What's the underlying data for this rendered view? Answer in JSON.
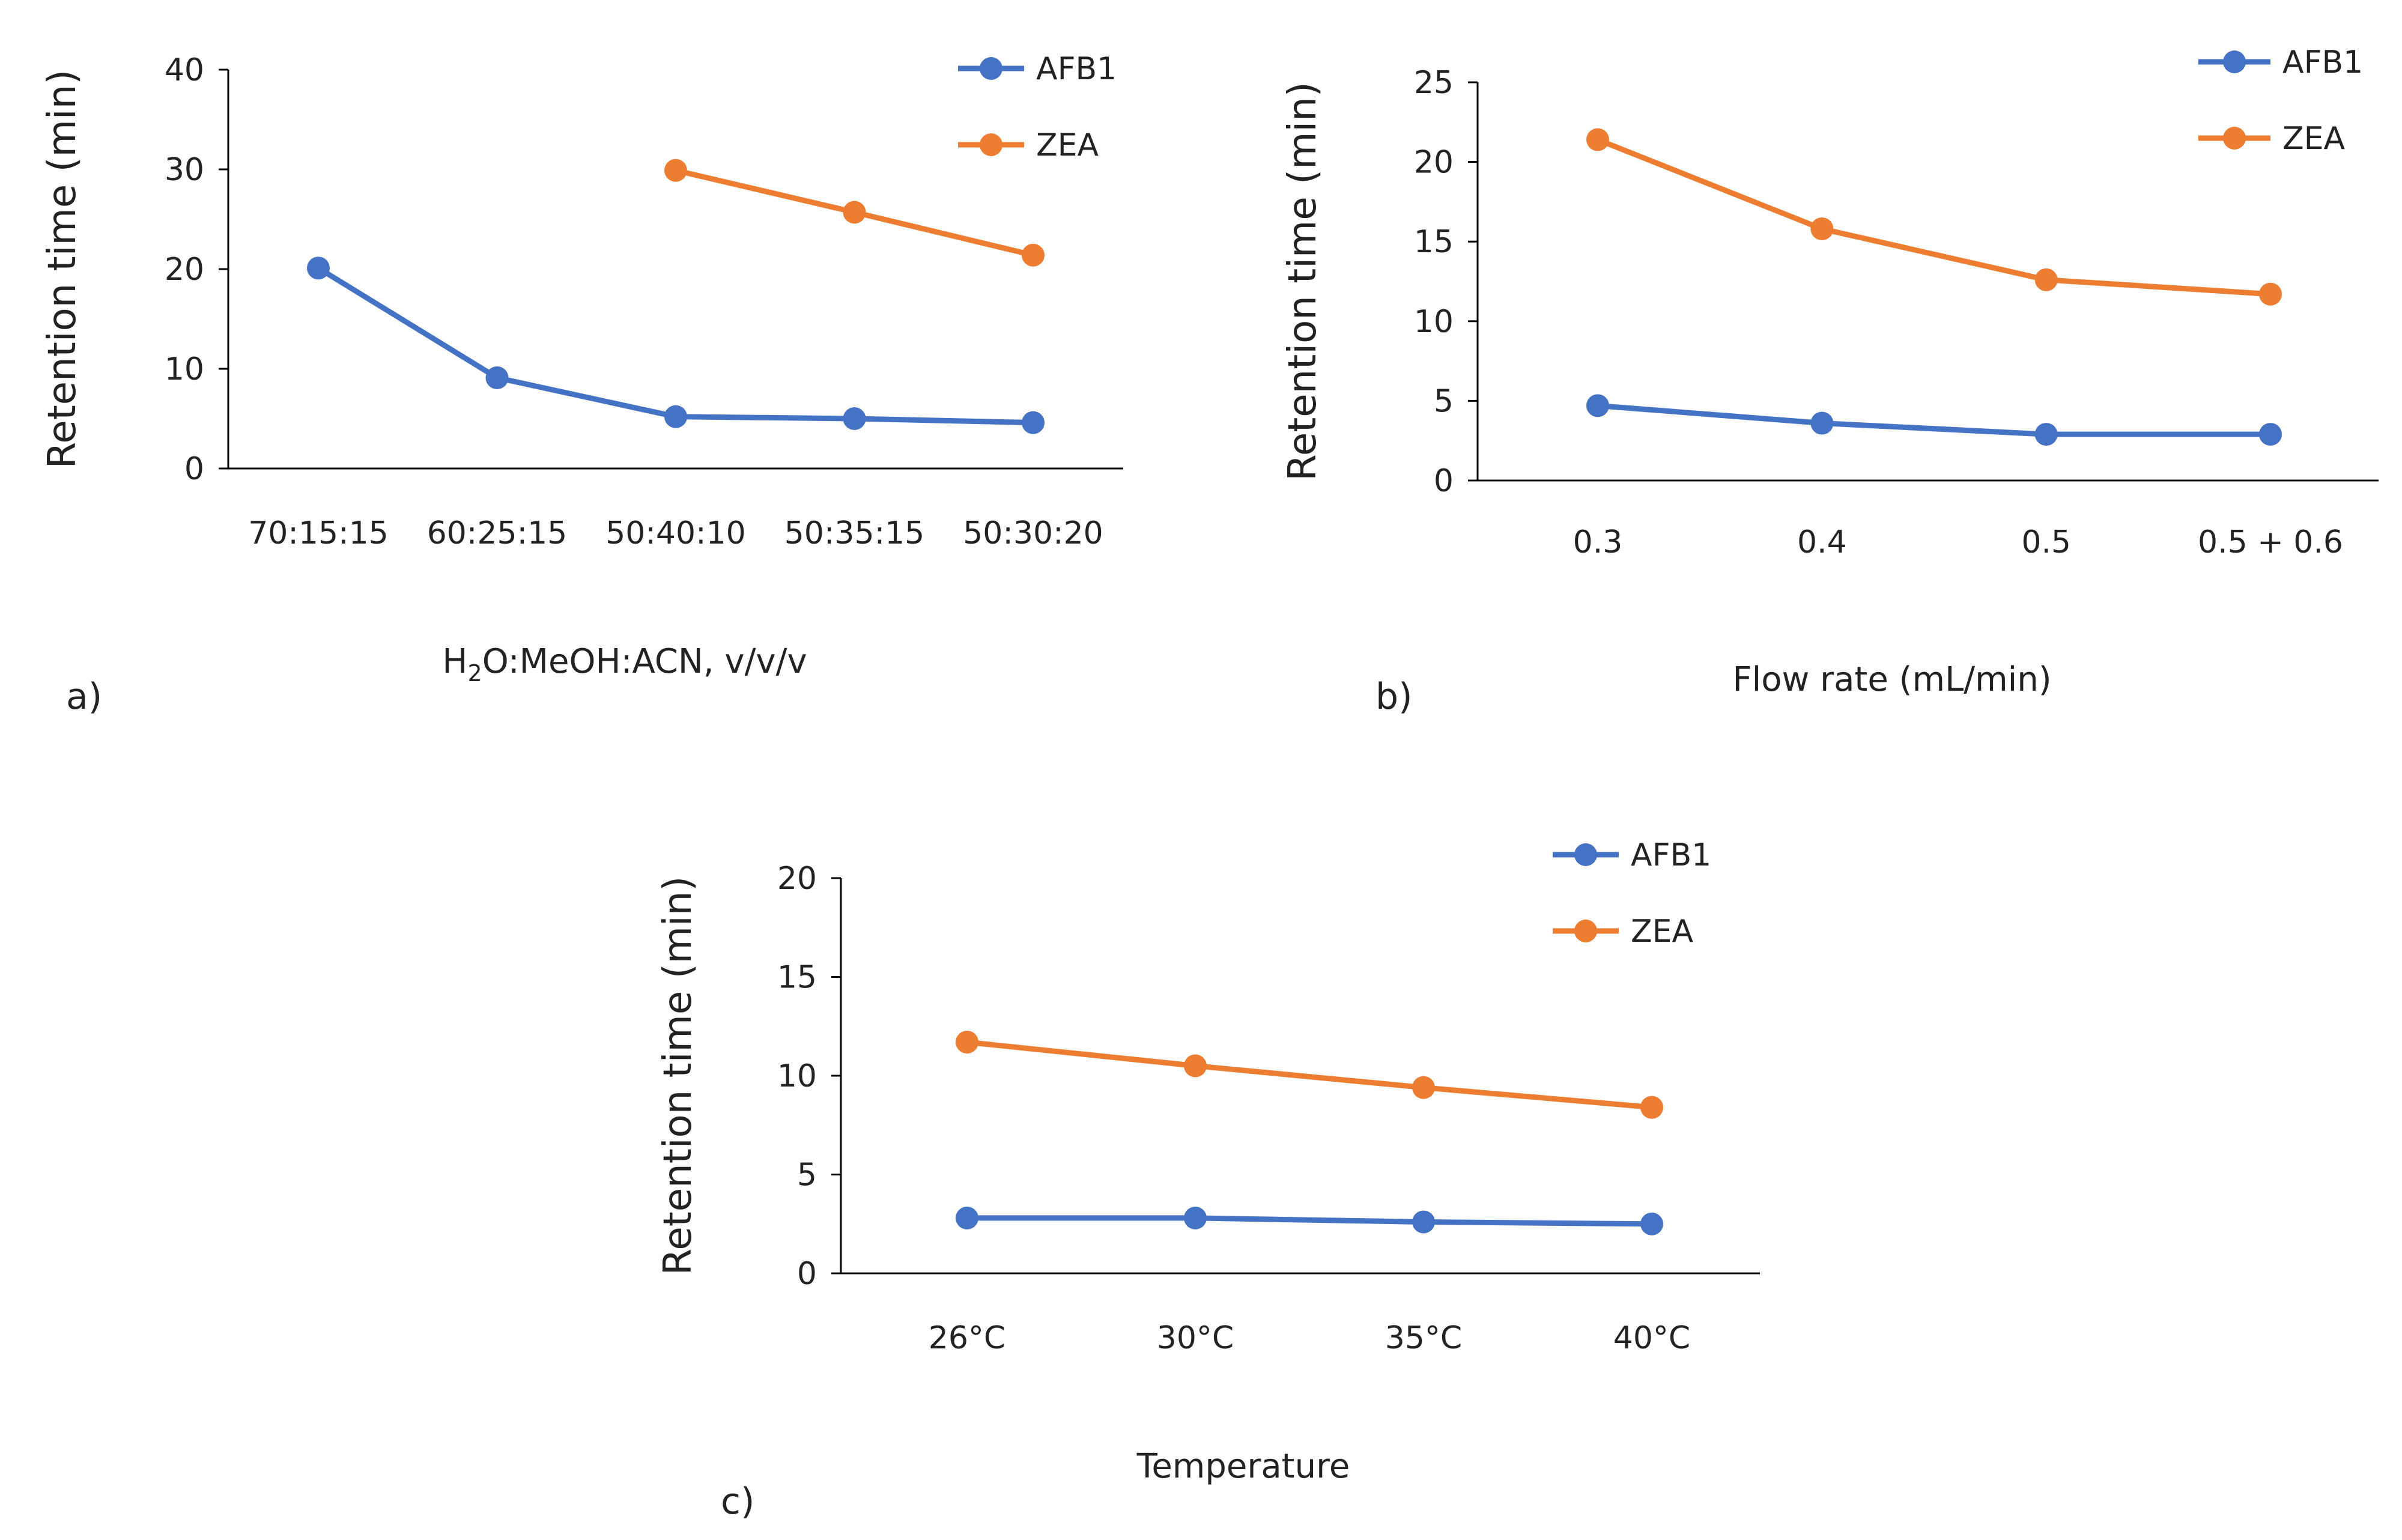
{
  "colors": {
    "AFB1": "#4472C4",
    "ZEA": "#ED7D31",
    "axis": "#000000",
    "text": "#222222"
  },
  "chart_data": [
    {
      "type": "line",
      "panel_label": "a)",
      "ylabel": "Retention time (min)",
      "xlabel_main": "H",
      "xlabel_sub": "2",
      "xlabel_rest": "O:MeOH:ACN, v/v/v",
      "ylim": [
        0,
        40
      ],
      "yticks": [
        0,
        10,
        20,
        30,
        40
      ],
      "categories": [
        "70:15:15",
        "60:25:15",
        "50:40:10",
        "50:35:15",
        "50:30:20"
      ],
      "series": [
        {
          "name": "AFB1",
          "values": [
            20.1,
            9.1,
            5.2,
            5.0,
            4.6
          ]
        },
        {
          "name": "ZEA",
          "values": [
            null,
            null,
            29.9,
            25.7,
            21.4
          ]
        }
      ],
      "legend": "top-right"
    },
    {
      "type": "line",
      "panel_label": "b)",
      "ylabel": "Retention time (min)",
      "xlabel": "Flow rate (mL/min)",
      "ylim": [
        0,
        25
      ],
      "yticks": [
        0,
        5,
        10,
        15,
        20,
        25
      ],
      "categories": [
        "0.3",
        "0.4",
        "0.5",
        "0.5 + 0.6"
      ],
      "series": [
        {
          "name": "AFB1",
          "values": [
            4.7,
            3.6,
            2.9,
            2.9
          ]
        },
        {
          "name": "ZEA",
          "values": [
            21.4,
            15.8,
            12.6,
            11.7
          ]
        }
      ],
      "legend": "top-right"
    },
    {
      "type": "line",
      "panel_label": "c)",
      "ylabel": "Retention time (min)",
      "xlabel": "Temperature",
      "ylim": [
        0,
        20
      ],
      "yticks": [
        0,
        5,
        10,
        15,
        20
      ],
      "categories": [
        "26°C",
        "30°C",
        "35°C",
        "40°C"
      ],
      "series": [
        {
          "name": "AFB1",
          "values": [
            2.8,
            2.8,
            2.6,
            2.5
          ]
        },
        {
          "name": "ZEA",
          "values": [
            11.7,
            10.5,
            9.4,
            8.4
          ]
        }
      ],
      "legend": "top-right"
    }
  ]
}
